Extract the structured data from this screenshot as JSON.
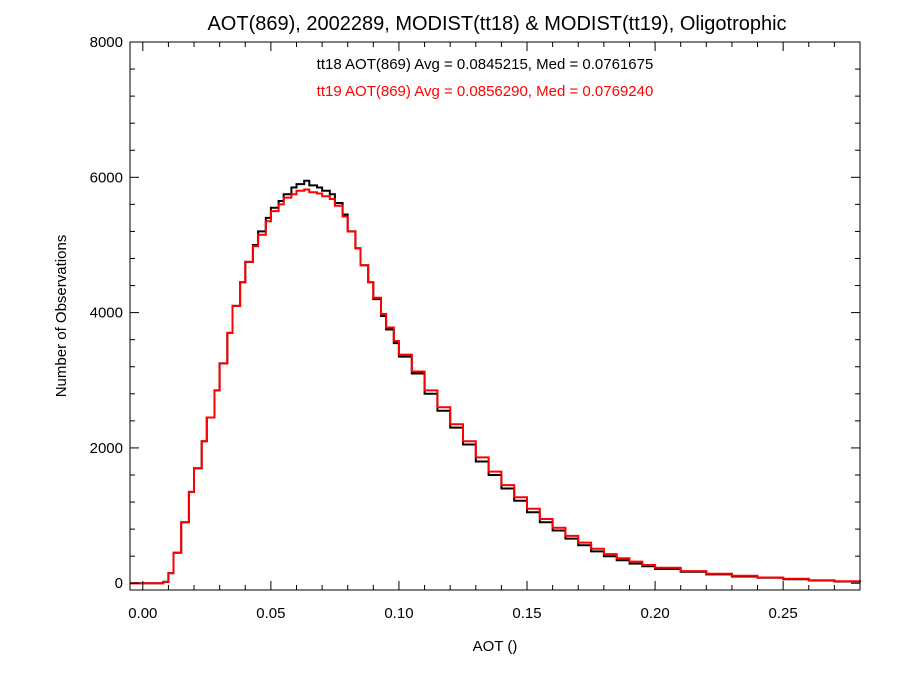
{
  "chart_data": {
    "type": "line",
    "title": "AOT(869), 2002289, MODIST(tt18) & MODIST(tt19), Oligotrophic",
    "xlabel": "AOT ()",
    "ylabel": "Number of Observations",
    "xlim": [
      -0.005,
      0.28
    ],
    "ylim": [
      -100,
      8000
    ],
    "x_ticks": [
      0.0,
      0.05,
      0.1,
      0.15,
      0.2,
      0.25
    ],
    "x_tick_labels": [
      "0.00",
      "0.05",
      "0.10",
      "0.15",
      "0.20",
      "0.25"
    ],
    "y_ticks": [
      0,
      2000,
      4000,
      6000,
      8000
    ],
    "y_tick_labels": [
      "0",
      "2000",
      "4000",
      "6000",
      "8000"
    ],
    "legend_placement": "top-center",
    "grid": false,
    "series": [
      {
        "name": "tt18 AOT(869) Avg = 0.0845215, Med = 0.0761675",
        "color": "#000000",
        "points": [
          [
            -0.005,
            0
          ],
          [
            0.005,
            0
          ],
          [
            0.008,
            20
          ],
          [
            0.01,
            150
          ],
          [
            0.012,
            450
          ],
          [
            0.015,
            900
          ],
          [
            0.018,
            1350
          ],
          [
            0.02,
            1700
          ],
          [
            0.023,
            2100
          ],
          [
            0.025,
            2450
          ],
          [
            0.028,
            2850
          ],
          [
            0.03,
            3250
          ],
          [
            0.033,
            3700
          ],
          [
            0.035,
            4100
          ],
          [
            0.038,
            4450
          ],
          [
            0.04,
            4750
          ],
          [
            0.043,
            5000
          ],
          [
            0.045,
            5200
          ],
          [
            0.048,
            5400
          ],
          [
            0.05,
            5550
          ],
          [
            0.053,
            5650
          ],
          [
            0.055,
            5750
          ],
          [
            0.058,
            5850
          ],
          [
            0.06,
            5900
          ],
          [
            0.063,
            5950
          ],
          [
            0.065,
            5880
          ],
          [
            0.068,
            5850
          ],
          [
            0.07,
            5800
          ],
          [
            0.073,
            5750
          ],
          [
            0.075,
            5620
          ],
          [
            0.078,
            5450
          ],
          [
            0.08,
            5200
          ],
          [
            0.083,
            4950
          ],
          [
            0.085,
            4700
          ],
          [
            0.088,
            4450
          ],
          [
            0.09,
            4200
          ],
          [
            0.093,
            3950
          ],
          [
            0.095,
            3750
          ],
          [
            0.098,
            3550
          ],
          [
            0.1,
            3350
          ],
          [
            0.105,
            3100
          ],
          [
            0.11,
            2800
          ],
          [
            0.115,
            2550
          ],
          [
            0.12,
            2300
          ],
          [
            0.125,
            2050
          ],
          [
            0.13,
            1800
          ],
          [
            0.135,
            1600
          ],
          [
            0.14,
            1400
          ],
          [
            0.145,
            1220
          ],
          [
            0.15,
            1050
          ],
          [
            0.155,
            900
          ],
          [
            0.16,
            780
          ],
          [
            0.165,
            660
          ],
          [
            0.17,
            560
          ],
          [
            0.175,
            470
          ],
          [
            0.18,
            400
          ],
          [
            0.185,
            340
          ],
          [
            0.19,
            290
          ],
          [
            0.195,
            250
          ],
          [
            0.2,
            210
          ],
          [
            0.21,
            170
          ],
          [
            0.22,
            130
          ],
          [
            0.23,
            100
          ],
          [
            0.24,
            80
          ],
          [
            0.25,
            60
          ],
          [
            0.26,
            40
          ],
          [
            0.27,
            25
          ],
          [
            0.28,
            15
          ]
        ]
      },
      {
        "name": "tt19 AOT(869) Avg = 0.0856290, Med = 0.0769240",
        "color": "#ff0000",
        "points": [
          [
            -0.005,
            0
          ],
          [
            0.005,
            0
          ],
          [
            0.008,
            20
          ],
          [
            0.01,
            150
          ],
          [
            0.012,
            450
          ],
          [
            0.015,
            900
          ],
          [
            0.018,
            1350
          ],
          [
            0.02,
            1700
          ],
          [
            0.023,
            2100
          ],
          [
            0.025,
            2450
          ],
          [
            0.028,
            2850
          ],
          [
            0.03,
            3250
          ],
          [
            0.033,
            3700
          ],
          [
            0.035,
            4100
          ],
          [
            0.038,
            4450
          ],
          [
            0.04,
            4750
          ],
          [
            0.043,
            4980
          ],
          [
            0.045,
            5150
          ],
          [
            0.048,
            5350
          ],
          [
            0.05,
            5500
          ],
          [
            0.053,
            5600
          ],
          [
            0.055,
            5700
          ],
          [
            0.058,
            5750
          ],
          [
            0.06,
            5800
          ],
          [
            0.063,
            5820
          ],
          [
            0.065,
            5780
          ],
          [
            0.068,
            5760
          ],
          [
            0.07,
            5720
          ],
          [
            0.073,
            5680
          ],
          [
            0.075,
            5580
          ],
          [
            0.078,
            5420
          ],
          [
            0.08,
            5200
          ],
          [
            0.083,
            4950
          ],
          [
            0.085,
            4700
          ],
          [
            0.088,
            4450
          ],
          [
            0.09,
            4220
          ],
          [
            0.093,
            3980
          ],
          [
            0.095,
            3780
          ],
          [
            0.098,
            3580
          ],
          [
            0.1,
            3380
          ],
          [
            0.105,
            3130
          ],
          [
            0.11,
            2850
          ],
          [
            0.115,
            2600
          ],
          [
            0.12,
            2350
          ],
          [
            0.125,
            2100
          ],
          [
            0.13,
            1860
          ],
          [
            0.135,
            1650
          ],
          [
            0.14,
            1450
          ],
          [
            0.145,
            1270
          ],
          [
            0.15,
            1100
          ],
          [
            0.155,
            950
          ],
          [
            0.16,
            820
          ],
          [
            0.165,
            700
          ],
          [
            0.17,
            600
          ],
          [
            0.175,
            510
          ],
          [
            0.18,
            430
          ],
          [
            0.185,
            370
          ],
          [
            0.19,
            320
          ],
          [
            0.195,
            270
          ],
          [
            0.2,
            230
          ],
          [
            0.21,
            180
          ],
          [
            0.22,
            140
          ],
          [
            0.23,
            110
          ],
          [
            0.24,
            85
          ],
          [
            0.25,
            65
          ],
          [
            0.26,
            45
          ],
          [
            0.27,
            28
          ],
          [
            0.28,
            18
          ]
        ]
      }
    ]
  }
}
